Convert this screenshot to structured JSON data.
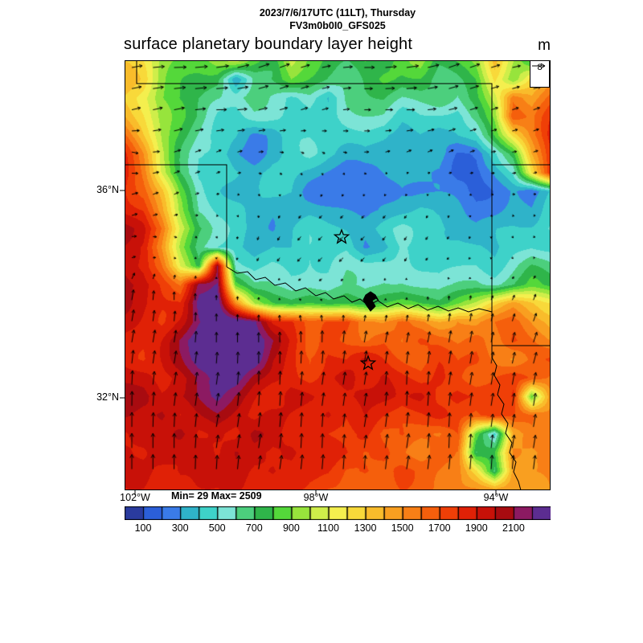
{
  "header": {
    "datetime_line": "2023/7/6/17UTC (11LT), Thursday",
    "model_line": "FV3m0b0I0_GFS025",
    "title": "surface planetary boundary layer height",
    "units": "m"
  },
  "ref_vector": {
    "label": "8"
  },
  "stats": {
    "text": "Min= 29 Max= 2509"
  },
  "axes": {
    "lat": [
      {
        "label": "36°N",
        "y": 237
      },
      {
        "label": "32°N",
        "y": 495
      }
    ],
    "lon": [
      {
        "label": "102°W",
        "x": 168
      },
      {
        "label": "98°W",
        "x": 393
      },
      {
        "label": "94°W",
        "x": 617
      }
    ]
  },
  "colorbar": {
    "level_min": 0,
    "level_step": 100,
    "labels": [
      "100",
      "300",
      "500",
      "700",
      "900",
      "1100",
      "1300",
      "1500",
      "1700",
      "1900",
      "2100"
    ],
    "palette": [
      "#2a3b9e",
      "#2b5fd9",
      "#3a7be8",
      "#2fb3c9",
      "#3ed2c9",
      "#7ce4d6",
      "#4ccf7d",
      "#2fb54a",
      "#54d83a",
      "#97e43c",
      "#cfee4a",
      "#f4ef4e",
      "#f8d93a",
      "#f9bc2b",
      "#f99f20",
      "#f87f16",
      "#f55f0c",
      "#ef3f07",
      "#e02106",
      "#c81108",
      "#a80b10",
      "#8c1a62",
      "#5c2d91"
    ]
  },
  "chart_data": {
    "type": "heatmap",
    "title": "surface planetary boundary layer height",
    "units": "m",
    "min": 29,
    "max": 2509,
    "x_ticks": [
      "102°W",
      "98°W",
      "94°W"
    ],
    "y_ticks": [
      "36°N",
      "32°N"
    ],
    "contour_levels": "0 to 2300 step 100",
    "grid": {
      "cols": 24,
      "rows": 24,
      "values": [
        [
          1250,
          1150,
          950,
          850,
          800,
          900,
          1050,
          900,
          800,
          1100,
          900,
          800,
          750,
          850,
          700,
          800,
          900,
          700,
          800,
          900,
          1300,
          1000,
          800,
          1300
        ],
        [
          1300,
          1200,
          900,
          800,
          750,
          700,
          300,
          700,
          800,
          950,
          800,
          700,
          650,
          750,
          800,
          700,
          750,
          650,
          700,
          800,
          1200,
          900,
          1300,
          1500
        ],
        [
          1250,
          1100,
          850,
          750,
          700,
          650,
          600,
          700,
          600,
          500,
          600,
          400,
          600,
          650,
          700,
          600,
          650,
          700,
          600,
          800,
          1100,
          1600,
          1400,
          1600
        ],
        [
          1400,
          1200,
          900,
          800,
          700,
          550,
          500,
          550,
          500,
          450,
          500,
          450,
          500,
          550,
          600,
          500,
          550,
          500,
          450,
          700,
          1000,
          1700,
          1500,
          1700
        ],
        [
          1600,
          1300,
          1000,
          800,
          600,
          450,
          400,
          250,
          300,
          450,
          450,
          400,
          450,
          500,
          450,
          400,
          450,
          400,
          450,
          500,
          800,
          1200,
          1500,
          1800
        ],
        [
          1800,
          1500,
          1100,
          750,
          500,
          400,
          250,
          200,
          350,
          400,
          450,
          400,
          400,
          450,
          400,
          350,
          400,
          450,
          250,
          200,
          400,
          700,
          1400,
          1800
        ],
        [
          1900,
          1600,
          1100,
          700,
          450,
          400,
          350,
          300,
          400,
          400,
          350,
          300,
          250,
          300,
          350,
          400,
          350,
          300,
          150,
          150,
          300,
          500,
          1200,
          1800
        ],
        [
          1900,
          1700,
          1300,
          800,
          500,
          400,
          350,
          300,
          350,
          400,
          300,
          250,
          200,
          250,
          300,
          350,
          300,
          250,
          200,
          150,
          250,
          350,
          200,
          400
        ],
        [
          1900,
          1800,
          1400,
          900,
          550,
          450,
          400,
          350,
          300,
          350,
          400,
          350,
          300,
          250,
          300,
          350,
          400,
          350,
          300,
          250,
          300,
          400,
          350,
          500
        ],
        [
          2000,
          1900,
          1600,
          1100,
          700,
          500,
          450,
          400,
          350,
          400,
          450,
          400,
          400,
          350,
          400,
          450,
          400,
          450,
          400,
          350,
          400,
          450,
          500,
          600
        ],
        [
          1950,
          1850,
          1500,
          1000,
          650,
          500,
          450,
          400,
          450,
          400,
          450,
          400,
          450,
          250,
          300,
          450,
          400,
          450,
          500,
          450,
          400,
          500,
          550,
          500
        ],
        [
          2000,
          1900,
          1600,
          1100,
          800,
          2200,
          600,
          450,
          500,
          450,
          500,
          450,
          500,
          450,
          500,
          550,
          500,
          450,
          500,
          550,
          500,
          600,
          700,
          600
        ],
        [
          2100,
          2000,
          1800,
          1600,
          2200,
          2300,
          900,
          600,
          550,
          500,
          550,
          500,
          550,
          500,
          600,
          650,
          600,
          550,
          600,
          650,
          600,
          700,
          800,
          700
        ],
        [
          2050,
          1950,
          1900,
          1900,
          2300,
          2300,
          1500,
          1000,
          800,
          700,
          750,
          700,
          800,
          750,
          800,
          850,
          800,
          750,
          900,
          1000,
          1200,
          1400,
          1300,
          1200
        ],
        [
          1950,
          1900,
          1850,
          2000,
          2200,
          2300,
          2300,
          2250,
          1900,
          1800,
          1600,
          1700,
          1800,
          1600,
          1500,
          1600,
          1500,
          1400,
          1500,
          1400,
          1500,
          1600,
          1500,
          1400
        ],
        [
          1900,
          1850,
          1900,
          2100,
          2300,
          2400,
          2350,
          2300,
          2100,
          1900,
          1700,
          1800,
          1700,
          1600,
          1700,
          1600,
          1700,
          1600,
          1500,
          1600,
          1500,
          1700,
          1600,
          1500
        ],
        [
          1900,
          1800,
          1850,
          2000,
          2250,
          2350,
          2400,
          2300,
          2000,
          1900,
          1800,
          1900,
          1800,
          1900,
          1800,
          1700,
          1600,
          1700,
          1600,
          1700,
          1600,
          1500,
          1600,
          1700
        ],
        [
          1950,
          1900,
          1800,
          1900,
          2100,
          2250,
          2300,
          2100,
          2000,
          1900,
          1800,
          1900,
          2000,
          1800,
          1900,
          1800,
          1700,
          1800,
          1700,
          1600,
          1700,
          1800,
          1700,
          1600
        ],
        [
          1900,
          1950,
          1900,
          2000,
          2100,
          2200,
          2100,
          2000,
          1900,
          2000,
          1900,
          1800,
          1900,
          2000,
          1900,
          1800,
          1900,
          1800,
          1900,
          1800,
          1700,
          1800,
          900,
          1500
        ],
        [
          1950,
          1900,
          2000,
          1900,
          2000,
          2100,
          2000,
          1900,
          2000,
          1900,
          1800,
          1900,
          1800,
          1900,
          1800,
          1700,
          1800,
          1900,
          1800,
          1700,
          1800,
          1700,
          1600,
          1500
        ],
        [
          1900,
          2000,
          1900,
          2000,
          1900,
          2000,
          1900,
          2000,
          1900,
          1800,
          1900,
          1800,
          1700,
          1800,
          1700,
          1800,
          1700,
          1600,
          1700,
          900,
          500,
          1400,
          1500,
          1400
        ],
        [
          1950,
          1900,
          2000,
          1900,
          2000,
          1900,
          2000,
          1900,
          1800,
          1900,
          1800,
          1900,
          1800,
          1700,
          1800,
          1700,
          1600,
          1700,
          1600,
          700,
          800,
          1500,
          1400,
          1500
        ],
        [
          1900,
          1950,
          1900,
          1950,
          1900,
          1850,
          1900,
          1850,
          1900,
          1800,
          1750,
          1800,
          1750,
          1800,
          1700,
          1750,
          1700,
          1650,
          1600,
          1200,
          600,
          1400,
          1500,
          1550
        ],
        [
          1900,
          1900,
          1850,
          1900,
          1850,
          1800,
          1850,
          1800,
          1850,
          1800,
          1750,
          1700,
          1750,
          1700,
          1650,
          1700,
          1650,
          1600,
          1550,
          1500,
          1400,
          1450,
          1500,
          1550
        ]
      ]
    },
    "wind": {
      "cols": 10,
      "rows": 10,
      "reference_ms": 8,
      "u": [
        [
          5,
          6,
          6,
          5,
          4,
          5,
          6,
          5,
          4,
          4
        ],
        [
          4,
          5,
          5,
          4,
          3,
          3,
          4,
          4,
          3,
          3
        ],
        [
          3,
          3,
          2,
          2,
          1,
          2,
          2,
          2,
          2,
          2
        ],
        [
          3,
          2,
          1,
          0,
          -1,
          -1,
          -1,
          0,
          1,
          1
        ],
        [
          2,
          1,
          0,
          -1,
          -2,
          -2,
          -1,
          -1,
          0,
          1
        ],
        [
          1,
          0,
          0,
          0,
          -1,
          0,
          0,
          0,
          1,
          1
        ],
        [
          1,
          1,
          0,
          0,
          0,
          1,
          1,
          1,
          1,
          2
        ],
        [
          0,
          1,
          1,
          0,
          1,
          1,
          0,
          1,
          1,
          1
        ],
        [
          0,
          0,
          1,
          1,
          0,
          1,
          1,
          0,
          1,
          1
        ],
        [
          0,
          0,
          0,
          1,
          1,
          0,
          1,
          1,
          0,
          1
        ]
      ],
      "v": [
        [
          1,
          0,
          1,
          2,
          1,
          0,
          1,
          2,
          1,
          0
        ],
        [
          1,
          1,
          0,
          1,
          1,
          0,
          0,
          1,
          1,
          1
        ],
        [
          -1,
          1,
          1,
          0,
          -1,
          0,
          1,
          1,
          0,
          1
        ],
        [
          1,
          1,
          0,
          -1,
          -1,
          -1,
          -1,
          -1,
          0,
          0
        ],
        [
          0,
          -1,
          -1,
          -2,
          -2,
          -2,
          -2,
          -1,
          -1,
          0
        ],
        [
          5,
          4,
          2,
          1,
          0,
          0,
          1,
          2,
          2,
          3
        ],
        [
          6,
          6,
          5,
          5,
          6,
          6,
          5,
          6,
          5,
          5
        ],
        [
          7,
          6,
          6,
          7,
          6,
          6,
          7,
          6,
          6,
          6
        ],
        [
          7,
          7,
          6,
          7,
          7,
          6,
          7,
          7,
          6,
          6
        ],
        [
          7,
          7,
          7,
          6,
          7,
          7,
          6,
          7,
          7,
          7
        ]
      ]
    },
    "markers": [
      {
        "shape": "star",
        "x": 270,
        "y": 220
      },
      {
        "shape": "star",
        "x": 303,
        "y": 377
      }
    ],
    "lake": [
      [
        300,
        292
      ],
      [
        306,
        288
      ],
      [
        312,
        292
      ],
      [
        316,
        299
      ],
      [
        313,
        296
      ],
      [
        308,
        299
      ],
      [
        312,
        306
      ],
      [
        306,
        312
      ],
      [
        301,
        305
      ],
      [
        297,
        298
      ]
    ],
    "borders": [
      [
        [
          15,
          0
        ],
        [
          15,
          29
        ],
        [
          457,
          29
        ],
        [
          457,
          313
        ]
      ],
      [
        [
          457,
          130
        ],
        [
          530,
          130
        ]
      ],
      [
        [
          0,
          130
        ],
        [
          127,
          130
        ],
        [
          127,
          257
        ]
      ],
      [
        [
          127,
          257
        ],
        [
          140,
          265
        ],
        [
          153,
          263
        ],
        [
          163,
          273
        ],
        [
          175,
          270
        ],
        [
          187,
          280
        ],
        [
          200,
          277
        ],
        [
          213,
          287
        ],
        [
          225,
          283
        ],
        [
          238,
          293
        ],
        [
          250,
          289
        ],
        [
          260,
          297
        ],
        [
          273,
          293
        ],
        [
          283,
          301
        ],
        [
          293,
          297
        ],
        [
          303,
          305
        ],
        [
          315,
          299
        ],
        [
          327,
          307
        ],
        [
          340,
          302
        ],
        [
          353,
          309
        ],
        [
          365,
          304
        ],
        [
          377,
          311
        ],
        [
          390,
          306
        ],
        [
          403,
          312
        ],
        [
          415,
          308
        ],
        [
          428,
          313
        ],
        [
          441,
          309
        ],
        [
          457,
          313
        ]
      ],
      [
        [
          457,
          313
        ],
        [
          457,
          370
        ],
        [
          463,
          380
        ],
        [
          460,
          392
        ],
        [
          467,
          404
        ],
        [
          464,
          416
        ],
        [
          472,
          428
        ],
        [
          469,
          440
        ],
        [
          477,
          452
        ],
        [
          474,
          464
        ],
        [
          482,
          476
        ],
        [
          479,
          488
        ],
        [
          487,
          500
        ],
        [
          484,
          512
        ],
        [
          490,
          524
        ],
        [
          493,
          535
        ]
      ],
      [
        [
          457,
          355
        ],
        [
          530,
          355
        ]
      ]
    ]
  }
}
